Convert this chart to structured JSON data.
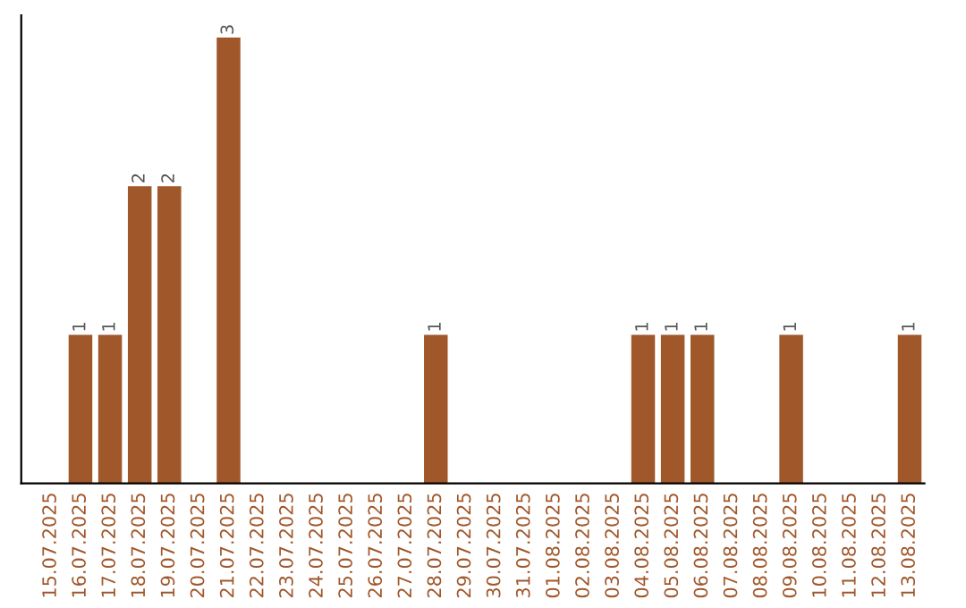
{
  "chart_data": {
    "type": "bar",
    "categories": [
      "15.07.2025",
      "16.07.2025",
      "17.07.2025",
      "18.07.2025",
      "19.07.2025",
      "20.07.2025",
      "21.07.2025",
      "22.07.2025",
      "23.07.2025",
      "24.07.2025",
      "25.07.2025",
      "26.07.2025",
      "27.07.2025",
      "28.07.2025",
      "29.07.2025",
      "30.07.2025",
      "31.07.2025",
      "01.08.2025",
      "02.08.2025",
      "03.08.2025",
      "04.08.2025",
      "05.08.2025",
      "06.08.2025",
      "07.08.2025",
      "08.08.2025",
      "09.08.2025",
      "10.08.2025",
      "11.08.2025",
      "12.08.2025",
      "13.08.2025"
    ],
    "values": [
      0,
      1,
      1,
      2,
      2,
      0,
      3,
      0,
      0,
      0,
      0,
      0,
      0,
      1,
      0,
      0,
      0,
      0,
      0,
      0,
      1,
      1,
      1,
      0,
      0,
      1,
      0,
      0,
      0,
      1
    ],
    "value_labels": [
      null,
      "1",
      "1",
      "2",
      "2",
      null,
      "3",
      null,
      null,
      null,
      null,
      null,
      null,
      "1",
      null,
      null,
      null,
      null,
      null,
      null,
      "1",
      "1",
      "1",
      null,
      null,
      "1",
      null,
      null,
      null,
      "1"
    ],
    "color": "#a0572a",
    "tick_labels": "x",
    "grid": false,
    "legend": false
  }
}
